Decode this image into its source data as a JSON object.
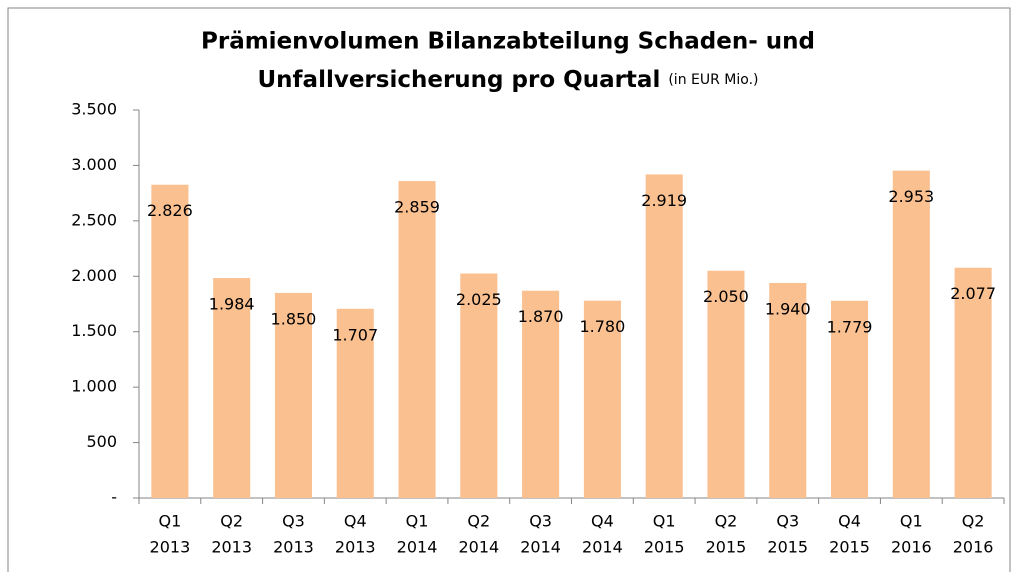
{
  "chart_data": {
    "type": "bar",
    "title": [
      "Prämienvolumen Bilanzabteilung Schaden- und",
      "Unfallversicherung pro Quartal"
    ],
    "subtitle": "(in EUR Mio.)",
    "categories": [
      [
        "Q1",
        "2013"
      ],
      [
        "Q2",
        "2013"
      ],
      [
        "Q3",
        "2013"
      ],
      [
        "Q4",
        "2013"
      ],
      [
        "Q1",
        "2014"
      ],
      [
        "Q2",
        "2014"
      ],
      [
        "Q3",
        "2014"
      ],
      [
        "Q4",
        "2014"
      ],
      [
        "Q1",
        "2015"
      ],
      [
        "Q2",
        "2015"
      ],
      [
        "Q3",
        "2015"
      ],
      [
        "Q4",
        "2015"
      ],
      [
        "Q1",
        "2016"
      ],
      [
        "Q2",
        "2016"
      ]
    ],
    "values": [
      2826,
      1984,
      1850,
      1707,
      2859,
      2025,
      1870,
      1780,
      2919,
      2050,
      1940,
      1779,
      2953,
      2077
    ],
    "value_labels": [
      "2.826",
      "1.984",
      "1.850",
      "1.707",
      "2.859",
      "2.025",
      "1.870",
      "1.780",
      "2.919",
      "2.050",
      "1.940",
      "1.779",
      "2.953",
      "2.077"
    ],
    "color": "#fac090",
    "ylim": [
      0,
      3500
    ],
    "yticks": [
      {
        "value": 0,
        "label": "-"
      },
      500,
      {
        "value": 1000,
        "label": "1.000"
      },
      {
        "value": 1500,
        "label": "1.500"
      },
      {
        "value": 2000,
        "label": "2.000"
      },
      {
        "value": 2500,
        "label": "2.500"
      },
      {
        "value": 3000,
        "label": "3.000"
      },
      {
        "value": 3500,
        "label": "3.500"
      }
    ],
    "grid": false
  }
}
